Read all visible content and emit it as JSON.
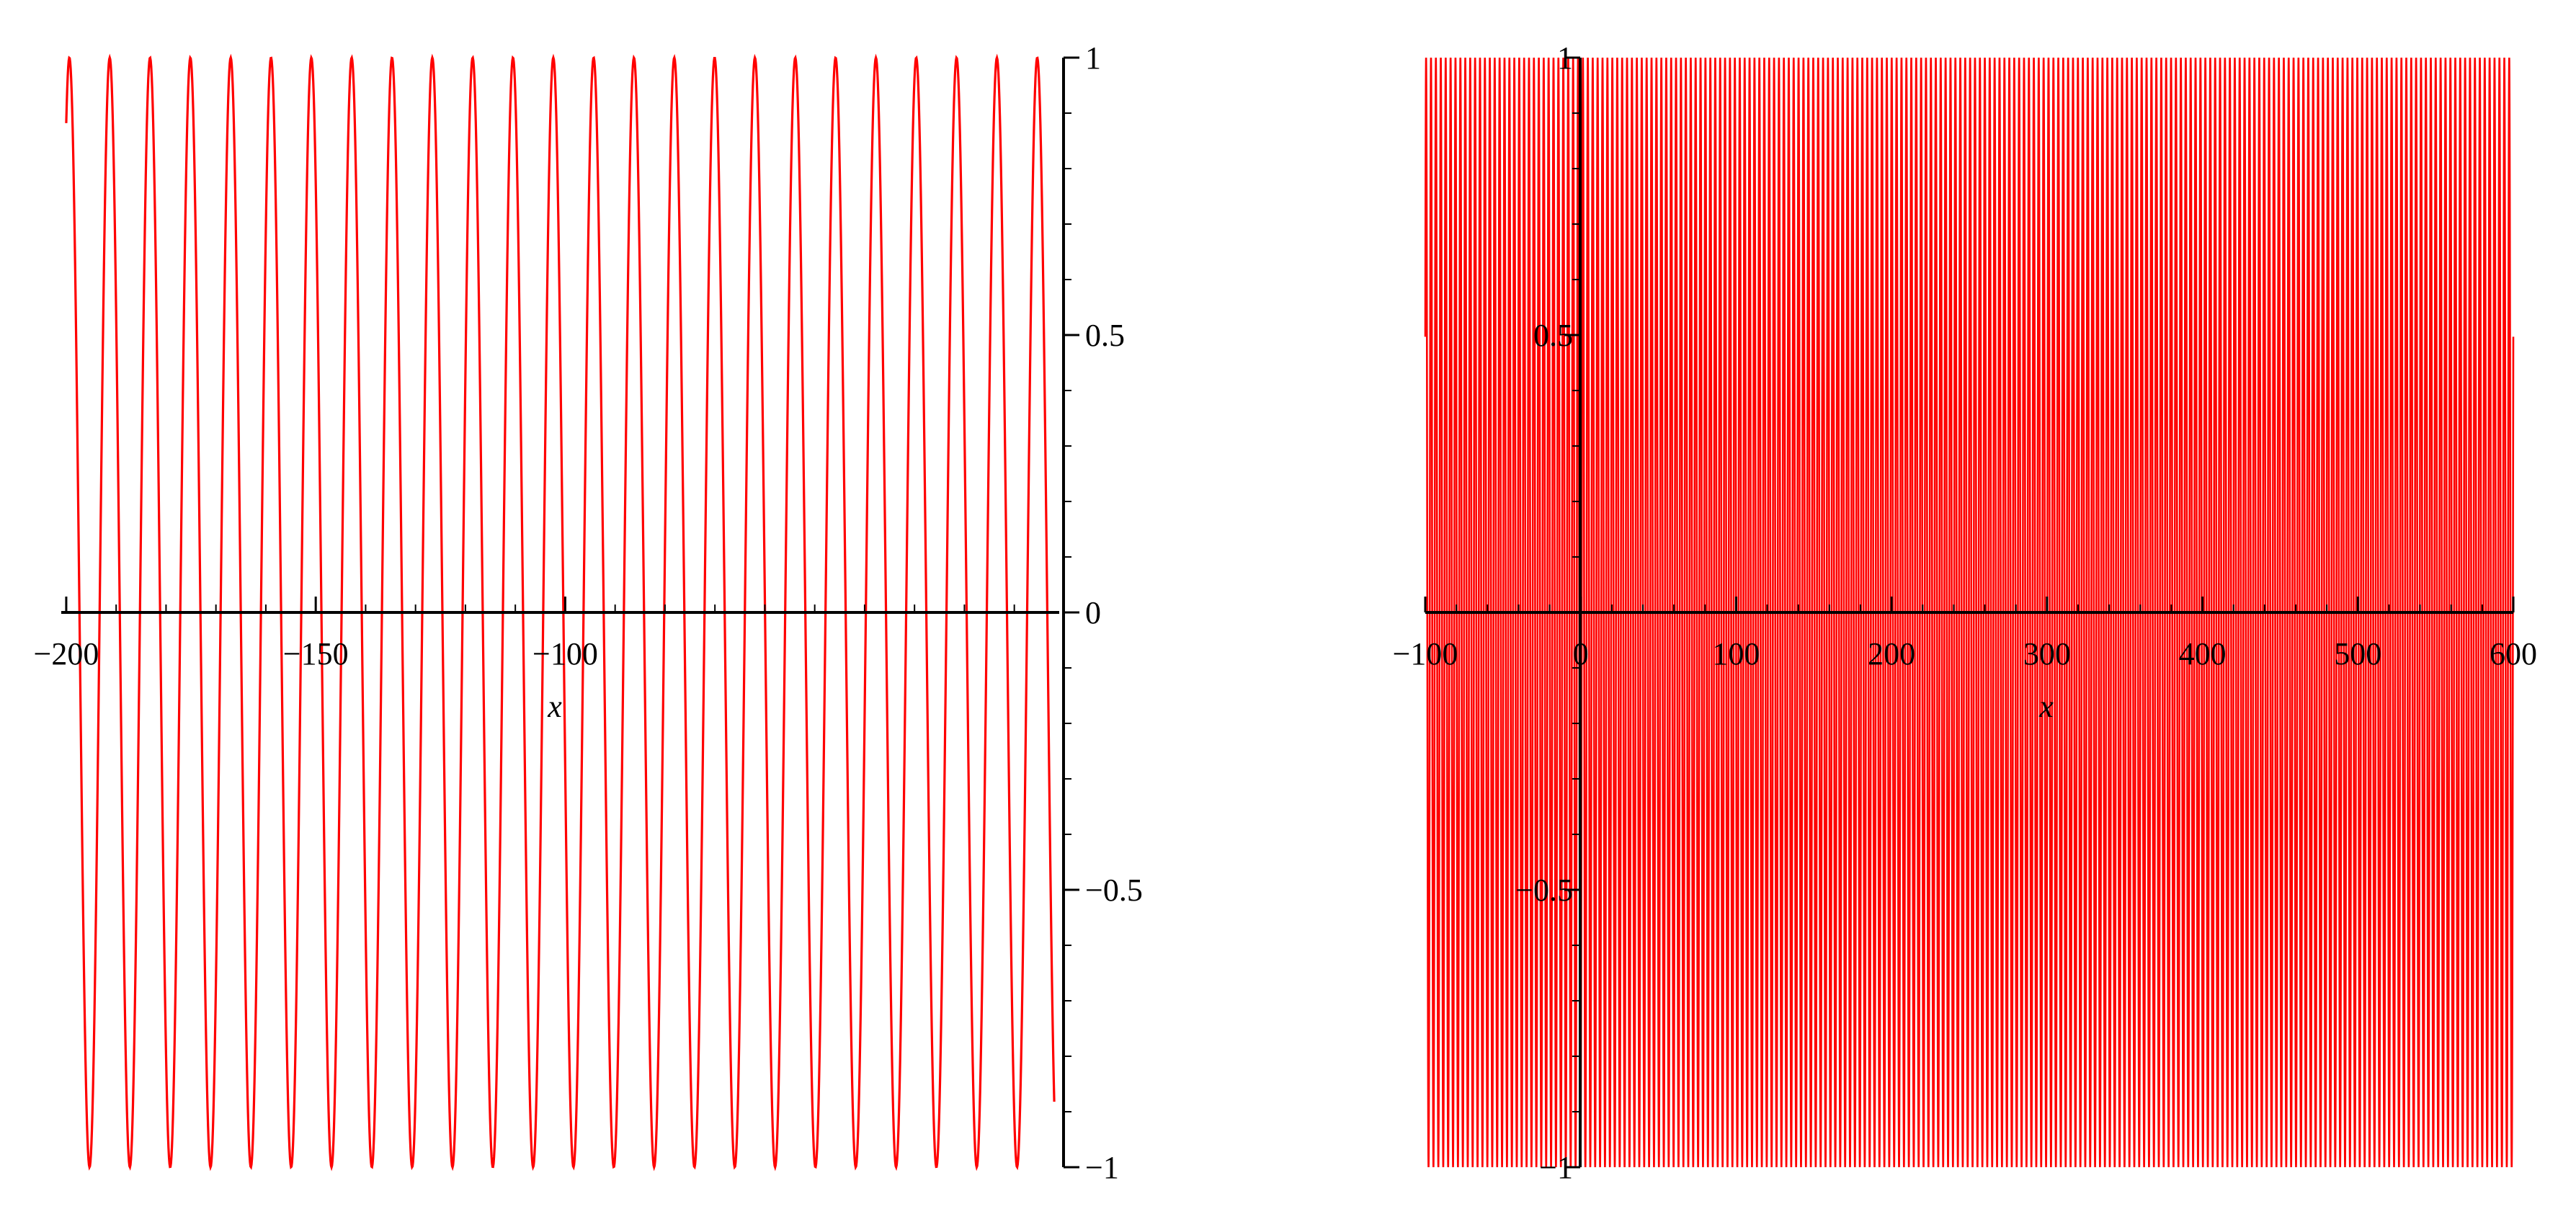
{
  "chart_data": [
    {
      "type": "line",
      "xlabel": "x",
      "ylabel": "",
      "xlim": [
        -201,
        -1
      ],
      "ylim": [
        -1,
        1
      ],
      "grid": false,
      "x_ticks": [
        -200,
        -150,
        -100
      ],
      "x_tick_labels": [
        "−200",
        "−150",
        "−100"
      ],
      "y_ticks": [
        1,
        0.5,
        0,
        -0.5,
        -1
      ],
      "y_tick_labels": [
        "1",
        "0.5",
        "0",
        "−0.5",
        "−1"
      ],
      "series": [
        {
          "color": "#ff0000",
          "x_range": [
            -200,
            -2
          ],
          "y_range": [
            -1,
            1
          ],
          "cycles": 24.5,
          "description": "regular sinusoid, ~24 full oscillations between -1 and 1"
        }
      ]
    },
    {
      "type": "line",
      "xlabel": "x",
      "ylabel": "",
      "xlim": [
        -100,
        600
      ],
      "ylim": [
        -1,
        1
      ],
      "grid": false,
      "x_ticks": [
        -100,
        0,
        100,
        200,
        300,
        400,
        500,
        600
      ],
      "x_tick_labels": [
        "−100",
        "0",
        "100",
        "200",
        "300",
        "400",
        "500",
        "600"
      ],
      "y_ticks": [
        1,
        0.5,
        -0.5,
        -1
      ],
      "y_tick_labels": [
        "1",
        "0.5",
        "−0.5",
        "−1"
      ],
      "series": [
        {
          "color": "#ff0000",
          "x_range": [
            -100,
            600
          ],
          "y_range": [
            -1,
            1
          ],
          "cycles": 222,
          "description": "very dense oscillation filling the band between -1 and 1"
        }
      ]
    }
  ]
}
